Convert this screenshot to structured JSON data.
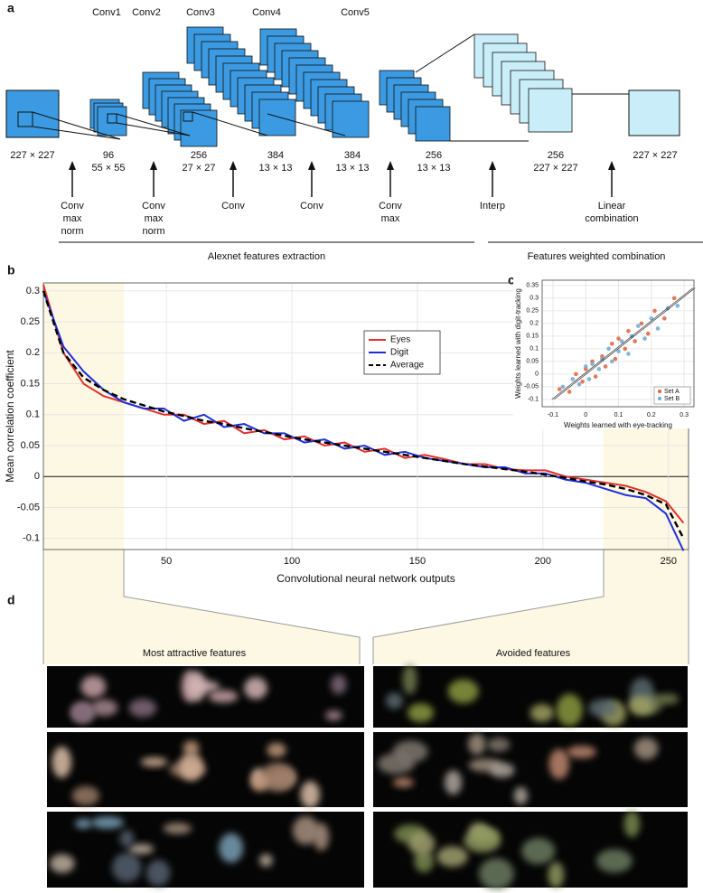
{
  "panel_labels": [
    "a",
    "b",
    "c",
    "d"
  ],
  "diagram": {
    "input": "227 × 227",
    "layers": [
      {
        "name": "Conv1",
        "depth": 96,
        "size": "55 × 55"
      },
      {
        "name": "Conv2",
        "depth": 256,
        "size": "27 × 27"
      },
      {
        "name": "Conv3",
        "depth": 384,
        "size": "13 × 13"
      },
      {
        "name": "Conv4",
        "depth": 384,
        "size": "13 × 13"
      },
      {
        "name": "Conv5",
        "depth": 256,
        "size": "13 × 13"
      }
    ],
    "interp": {
      "depth": 256,
      "size": "227 × 227"
    },
    "output": "227 × 227",
    "operations": [
      [
        "Conv",
        "max",
        "norm"
      ],
      [
        "Conv",
        "max",
        "norm"
      ],
      [
        "Conv"
      ],
      [
        "Conv"
      ],
      [
        "Conv",
        "max"
      ],
      [
        "Interp"
      ],
      [
        "Linear",
        "combination"
      ]
    ],
    "sections": [
      "Alexnet features extraction",
      "Features weighted combination"
    ]
  },
  "chart_data": [
    {
      "type": "line",
      "xlabel": "Convolutional neural network outputs",
      "ylabel": "Mean correlation coefficient",
      "x": [
        1,
        9,
        17,
        25,
        33,
        41,
        49,
        57,
        65,
        73,
        81,
        89,
        97,
        105,
        113,
        121,
        129,
        137,
        145,
        153,
        161,
        169,
        177,
        185,
        193,
        201,
        209,
        217,
        225,
        233,
        241,
        249,
        256
      ],
      "series": [
        {
          "name": "Eyes",
          "color": "#e0302a",
          "style": "solid",
          "values": [
            0.31,
            0.2,
            0.15,
            0.13,
            0.12,
            0.11,
            0.1,
            0.1,
            0.085,
            0.09,
            0.07,
            0.075,
            0.06,
            0.065,
            0.05,
            0.055,
            0.04,
            0.045,
            0.03,
            0.035,
            0.028,
            0.02,
            0.02,
            0.012,
            0.01,
            0.01,
            0.0,
            -0.005,
            -0.01,
            -0.015,
            -0.025,
            -0.04,
            -0.075
          ]
        },
        {
          "name": "Digit",
          "color": "#1f2fd6",
          "style": "solid",
          "values": [
            0.3,
            0.21,
            0.17,
            0.14,
            0.12,
            0.11,
            0.11,
            0.09,
            0.1,
            0.08,
            0.085,
            0.07,
            0.07,
            0.055,
            0.06,
            0.045,
            0.05,
            0.035,
            0.04,
            0.03,
            0.025,
            0.02,
            0.015,
            0.015,
            0.005,
            0.005,
            -0.005,
            -0.01,
            -0.02,
            -0.03,
            -0.035,
            -0.06,
            -0.12
          ]
        },
        {
          "name": "Average",
          "color": "#000000",
          "style": "dashed",
          "values": [
            0.3,
            0.2,
            0.16,
            0.14,
            0.125,
            0.115,
            0.105,
            0.098,
            0.09,
            0.085,
            0.078,
            0.072,
            0.066,
            0.06,
            0.055,
            0.05,
            0.045,
            0.04,
            0.035,
            0.03,
            0.025,
            0.02,
            0.016,
            0.012,
            0.008,
            0.003,
            -0.002,
            -0.008,
            -0.013,
            -0.02,
            -0.03,
            -0.045,
            -0.1
          ]
        }
      ],
      "xlim": [
        1,
        258
      ],
      "ylim": [
        -0.118,
        0.313
      ],
      "xticks": [
        50,
        100,
        150,
        200,
        250
      ],
      "yticks": [
        -0.1,
        -0.05,
        0,
        0.05,
        0.1,
        0.15,
        0.2,
        0.25,
        0.3
      ],
      "grid": true,
      "legend": "upper center",
      "highlight_ranges": [
        [
          1,
          33
        ],
        [
          224,
          258
        ]
      ],
      "highlight_color": "#fdf8e4"
    },
    {
      "type": "scatter",
      "xlabel": "Weights learned with eye-tracking",
      "ylabel": "Weights learned with digit-tracking",
      "series": [
        {
          "name": "Set A",
          "color": "#e0603a",
          "x": [
            -0.08,
            -0.05,
            -0.03,
            -0.01,
            0.0,
            0.02,
            0.03,
            0.05,
            0.06,
            0.08,
            0.09,
            0.1,
            0.12,
            0.13,
            0.15,
            0.17,
            0.19,
            0.21,
            0.24,
            0.27
          ],
          "values": [
            -0.06,
            -0.07,
            0.0,
            -0.03,
            0.02,
            0.05,
            -0.01,
            0.07,
            0.03,
            0.12,
            0.06,
            0.14,
            0.1,
            0.17,
            0.13,
            0.2,
            0.16,
            0.25,
            0.22,
            0.3
          ]
        },
        {
          "name": "Set B",
          "color": "#6fa8d0",
          "x": [
            -0.07,
            -0.04,
            -0.02,
            0.0,
            0.01,
            0.02,
            0.04,
            0.05,
            0.07,
            0.08,
            0.1,
            0.11,
            0.13,
            0.14,
            0.16,
            0.18,
            0.2,
            0.22,
            0.25,
            0.28
          ],
          "values": [
            -0.05,
            -0.02,
            -0.04,
            0.03,
            -0.02,
            0.04,
            0.02,
            0.06,
            0.1,
            0.05,
            0.09,
            0.13,
            0.08,
            0.15,
            0.19,
            0.14,
            0.22,
            0.18,
            0.26,
            0.27
          ]
        }
      ],
      "fit_line": {
        "x": [
          -0.1,
          0.33
        ],
        "y": [
          -0.1,
          0.34
        ]
      },
      "xlim": [
        -0.133,
        0.33
      ],
      "ylim": [
        -0.129,
        0.371
      ],
      "xticks": [
        -0.1,
        0,
        0.1,
        0.2,
        0.3
      ],
      "yticks": [
        -0.1,
        -0.05,
        0,
        0.05,
        0.1,
        0.15,
        0.2,
        0.25,
        0.3,
        0.35
      ],
      "grid": true,
      "legend": "lower right"
    }
  ],
  "features": {
    "headings": [
      "Most attractive features",
      "Avoided features"
    ]
  }
}
